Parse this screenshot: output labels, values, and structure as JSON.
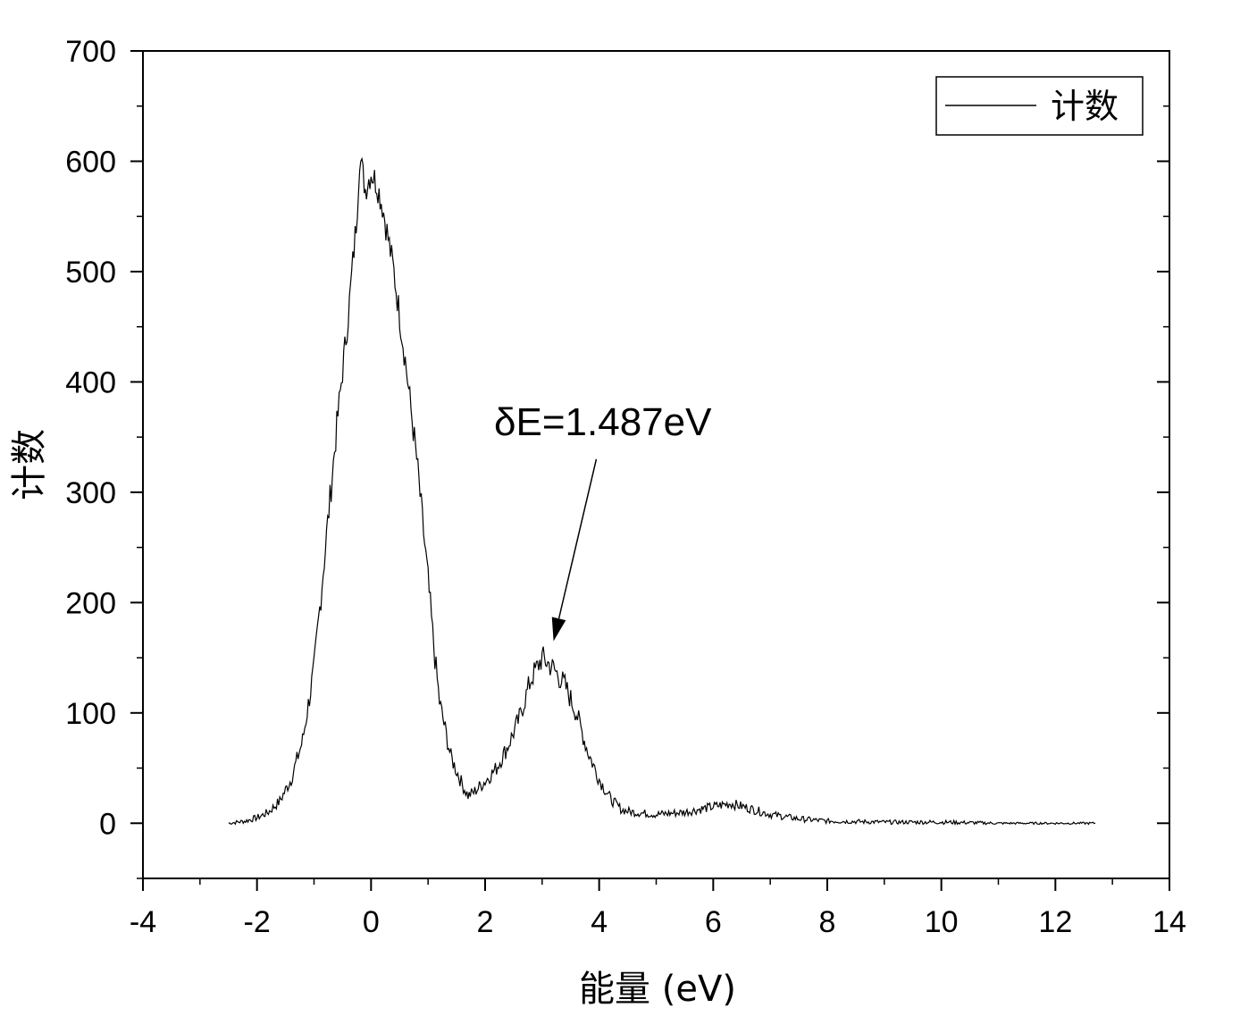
{
  "chart_data": {
    "type": "line",
    "title": "",
    "xlabel": "能量 (eV)",
    "ylabel": "计数",
    "xlim": [
      -4,
      14
    ],
    "ylim": [
      -50,
      700
    ],
    "xticks": [
      -4,
      -2,
      0,
      2,
      4,
      6,
      8,
      10,
      12,
      14
    ],
    "yticks": [
      0,
      100,
      200,
      300,
      400,
      500,
      600,
      700
    ],
    "xtick_labels": [
      "-4",
      "-2",
      "0",
      "2",
      "4",
      "6",
      "8",
      "10",
      "12",
      "14"
    ],
    "ytick_labels": [
      "0",
      "100",
      "200",
      "300",
      "400",
      "500",
      "600",
      "700"
    ],
    "grid": false,
    "legend_position": "top-right",
    "series": [
      {
        "name": "计数",
        "color": "#000000",
        "points": [
          [
            -2.5,
            0
          ],
          [
            -2.2,
            2
          ],
          [
            -2.0,
            5
          ],
          [
            -1.8,
            10
          ],
          [
            -1.6,
            20
          ],
          [
            -1.4,
            40
          ],
          [
            -1.2,
            75
          ],
          [
            -1.0,
            140
          ],
          [
            -0.8,
            250
          ],
          [
            -0.6,
            360
          ],
          [
            -0.4,
            460
          ],
          [
            -0.25,
            550
          ],
          [
            -0.2,
            605
          ],
          [
            -0.1,
            575
          ],
          [
            0.0,
            590
          ],
          [
            0.1,
            580
          ],
          [
            0.2,
            560
          ],
          [
            0.3,
            530
          ],
          [
            0.4,
            500
          ],
          [
            0.6,
            420
          ],
          [
            0.8,
            330
          ],
          [
            1.0,
            220
          ],
          [
            1.1,
            160
          ],
          [
            1.2,
            110
          ],
          [
            1.4,
            60
          ],
          [
            1.6,
            35
          ],
          [
            1.7,
            25
          ],
          [
            1.8,
            28
          ],
          [
            2.0,
            38
          ],
          [
            2.2,
            50
          ],
          [
            2.4,
            70
          ],
          [
            2.6,
            95
          ],
          [
            2.8,
            130
          ],
          [
            3.0,
            150
          ],
          [
            3.2,
            140
          ],
          [
            3.4,
            125
          ],
          [
            3.6,
            100
          ],
          [
            3.8,
            65
          ],
          [
            4.0,
            40
          ],
          [
            4.2,
            22
          ],
          [
            4.4,
            12
          ],
          [
            4.6,
            10
          ],
          [
            5.0,
            8
          ],
          [
            5.5,
            10
          ],
          [
            6.0,
            15
          ],
          [
            6.3,
            18
          ],
          [
            6.6,
            14
          ],
          [
            7.0,
            8
          ],
          [
            7.5,
            4
          ],
          [
            8.0,
            2
          ],
          [
            9.0,
            1
          ],
          [
            10.0,
            1
          ],
          [
            11.0,
            0
          ],
          [
            12.0,
            0
          ],
          [
            12.7,
            0
          ]
        ]
      }
    ],
    "annotations": [
      {
        "text": "δE=1.487eV",
        "arrow_to": [
          3.2,
          165
        ],
        "arrow_from": [
          3.95,
          330
        ]
      }
    ]
  }
}
